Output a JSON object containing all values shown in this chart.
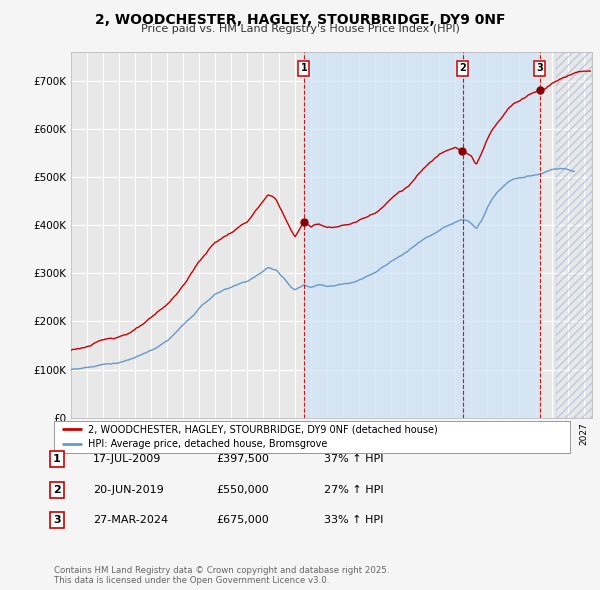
{
  "title": "2, WOODCHESTER, HAGLEY, STOURBRIDGE, DY9 0NF",
  "subtitle": "Price paid vs. HM Land Registry's House Price Index (HPI)",
  "background_color": "#f5f5f5",
  "plot_bg_color": "#e8e8e8",
  "grid_color": "#ffffff",
  "sale_labels": [
    "1",
    "2",
    "3"
  ],
  "sale_pct": [
    "37% ↑ HPI",
    "27% ↑ HPI",
    "33% ↑ HPI"
  ],
  "sale_date_strs": [
    "17-JUL-2009",
    "20-JUN-2019",
    "27-MAR-2024"
  ],
  "sale_price_strs": [
    "£397,500",
    "£550,000",
    "£675,000"
  ],
  "sale_year_floats": [
    2009.542,
    2019.458,
    2024.25
  ],
  "sale_prices": [
    397500,
    550000,
    675000
  ],
  "red_line_color": "#cc0000",
  "blue_line_color": "#6699cc",
  "vline_color": "#cc0000",
  "highlight_color": "#d0e4f7",
  "ylabel_vals": [
    0,
    100000,
    200000,
    300000,
    400000,
    500000,
    600000,
    700000
  ],
  "ylabel_strs": [
    "£0",
    "£100K",
    "£200K",
    "£300K",
    "£400K",
    "£500K",
    "£600K",
    "£700K"
  ],
  "xmin": 1995.0,
  "xmax": 2027.5,
  "ymin": 0,
  "ymax": 760000,
  "legend_label_red": "2, WOODCHESTER, HAGLEY, STOURBRIDGE, DY9 0NF (detached house)",
  "legend_label_blue": "HPI: Average price, detached house, Bromsgrove",
  "footer": "Contains HM Land Registry data © Crown copyright and database right 2025.\nThis data is licensed under the Open Government Licence v3.0.",
  "annotation_box_color": "#cc0000"
}
